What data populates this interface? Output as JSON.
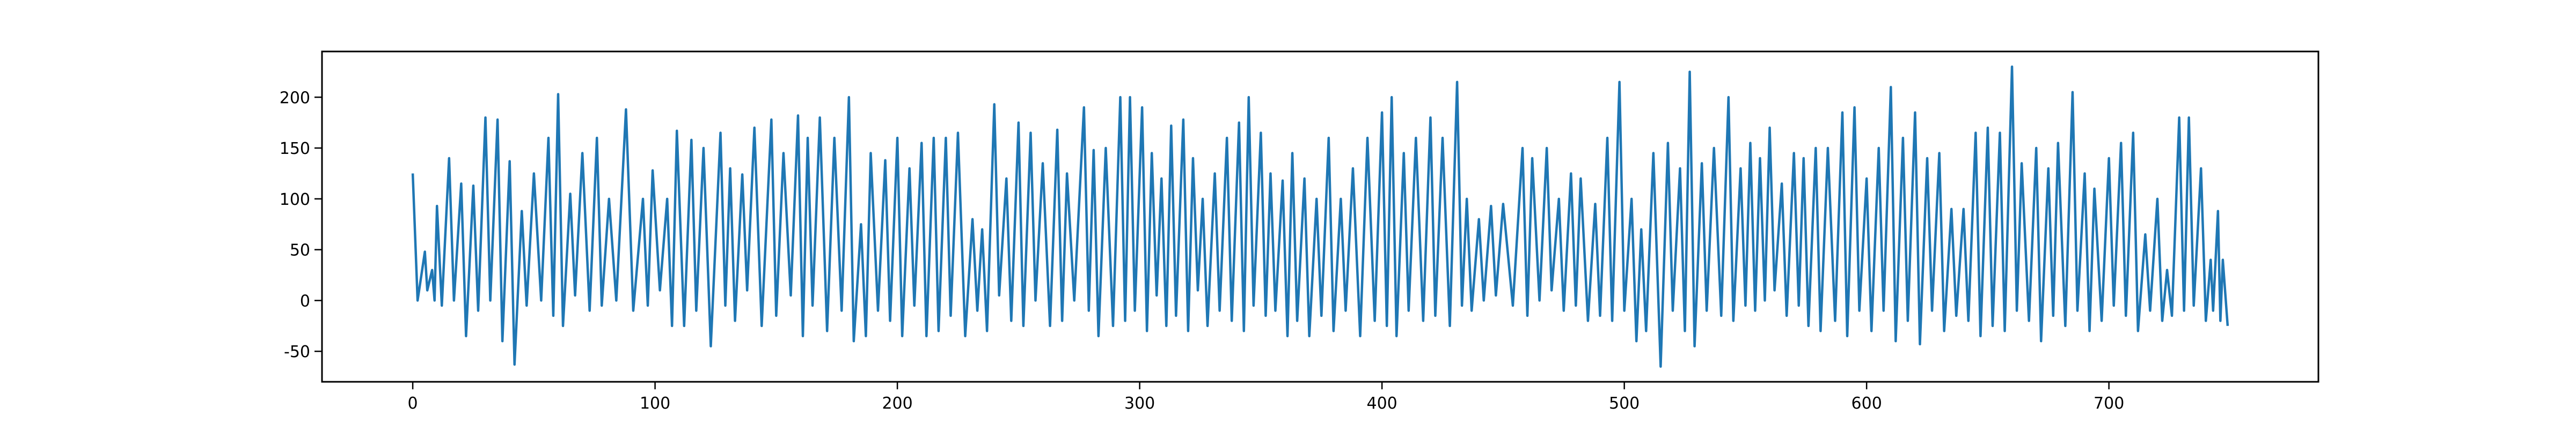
{
  "chart_data": {
    "type": "line",
    "x": [
      0,
      2,
      5,
      6,
      8,
      9,
      10,
      12,
      15,
      17,
      20,
      22,
      25,
      27,
      30,
      32,
      35,
      37,
      40,
      42,
      45,
      47,
      50,
      53,
      56,
      58,
      60,
      62,
      65,
      67,
      70,
      73,
      76,
      78,
      81,
      84,
      88,
      91,
      95,
      97,
      99,
      102,
      105,
      107,
      109,
      112,
      115,
      117,
      120,
      123,
      127,
      129,
      131,
      133,
      136,
      138,
      141,
      144,
      148,
      150,
      153,
      156,
      159,
      161,
      163,
      165,
      168,
      171,
      174,
      177,
      180,
      182,
      185,
      187,
      189,
      192,
      195,
      197,
      200,
      202,
      205,
      207,
      210,
      212,
      215,
      217,
      220,
      222,
      225,
      228,
      231,
      233,
      235,
      237,
      240,
      242,
      245,
      247,
      250,
      252,
      255,
      257,
      260,
      263,
      266,
      268,
      270,
      273,
      277,
      279,
      281,
      283,
      286,
      289,
      292,
      294,
      296,
      298,
      301,
      303,
      305,
      307,
      309,
      311,
      313,
      315,
      318,
      320,
      322,
      324,
      326,
      328,
      331,
      333,
      336,
      338,
      341,
      343,
      345,
      347,
      350,
      352,
      354,
      356,
      359,
      361,
      363,
      365,
      368,
      370,
      373,
      375,
      378,
      380,
      383,
      385,
      388,
      391,
      394,
      397,
      400,
      402,
      404,
      406,
      409,
      411,
      414,
      417,
      420,
      422,
      425,
      428,
      431,
      433,
      435,
      437,
      440,
      442,
      445,
      447,
      450,
      454,
      458,
      460,
      462,
      465,
      468,
      470,
      473,
      475,
      478,
      480,
      482,
      485,
      488,
      490,
      493,
      495,
      498,
      500,
      503,
      505,
      507,
      509,
      512,
      515,
      518,
      520,
      523,
      525,
      527,
      529,
      532,
      534,
      537,
      540,
      543,
      545,
      548,
      550,
      552,
      554,
      556,
      558,
      560,
      562,
      565,
      567,
      570,
      572,
      574,
      576,
      579,
      581,
      584,
      587,
      590,
      592,
      595,
      597,
      600,
      602,
      605,
      607,
      610,
      612,
      615,
      617,
      620,
      622,
      625,
      627,
      630,
      632,
      635,
      637,
      640,
      642,
      645,
      647,
      650,
      652,
      655,
      657,
      660,
      662,
      664,
      667,
      670,
      672,
      675,
      677,
      679,
      682,
      685,
      687,
      690,
      692,
      694,
      697,
      700,
      702,
      705,
      707,
      710,
      712,
      715,
      717,
      720,
      722,
      724,
      726,
      729,
      731,
      733,
      735,
      738,
      740,
      742,
      743,
      745,
      746,
      747,
      749
    ],
    "series": [
      {
        "color": "#1f77b4",
        "values": [
          125,
          0,
          48,
          10,
          30,
          0,
          93,
          -5,
          140,
          0,
          115,
          -35,
          113,
          -10,
          180,
          0,
          178,
          -40,
          137,
          -63,
          88,
          -5,
          125,
          0,
          160,
          -15,
          203,
          -25,
          105,
          5,
          145,
          -10,
          160,
          -5,
          100,
          0,
          188,
          -10,
          100,
          -5,
          128,
          10,
          100,
          -25,
          167,
          -25,
          158,
          -10,
          150,
          -45,
          165,
          -5,
          130,
          -20,
          124,
          10,
          170,
          -25,
          178,
          -15,
          145,
          5,
          182,
          -35,
          160,
          -5,
          180,
          -30,
          160,
          -10,
          200,
          -40,
          75,
          -35,
          145,
          -10,
          138,
          -20,
          160,
          -35,
          130,
          -5,
          155,
          -35,
          160,
          -30,
          160,
          -15,
          165,
          -35,
          80,
          -10,
          70,
          -30,
          193,
          5,
          120,
          -20,
          175,
          -25,
          165,
          0,
          135,
          -25,
          168,
          -20,
          125,
          0,
          190,
          -10,
          148,
          -35,
          150,
          -25,
          200,
          -20,
          200,
          -10,
          190,
          -30,
          145,
          5,
          120,
          -25,
          172,
          -15,
          178,
          -30,
          140,
          10,
          100,
          -25,
          125,
          -10,
          160,
          -20,
          175,
          -30,
          200,
          -5,
          165,
          -15,
          125,
          -10,
          118,
          -35,
          145,
          -20,
          120,
          -35,
          100,
          -15,
          160,
          -30,
          100,
          -10,
          130,
          -35,
          160,
          -20,
          185,
          -25,
          200,
          -35,
          145,
          -10,
          160,
          -20,
          180,
          -15,
          160,
          -25,
          215,
          -5,
          100,
          -10,
          80,
          0,
          93,
          5,
          95,
          -5,
          150,
          -15,
          140,
          0,
          150,
          10,
          100,
          -10,
          125,
          -5,
          120,
          -20,
          95,
          -15,
          160,
          -20,
          215,
          -10,
          100,
          -40,
          70,
          -30,
          145,
          -65,
          155,
          -10,
          130,
          -30,
          225,
          -45,
          135,
          -10,
          150,
          -15,
          200,
          -20,
          130,
          -5,
          155,
          -10,
          140,
          0,
          170,
          10,
          115,
          -15,
          145,
          -5,
          140,
          -25,
          150,
          -30,
          150,
          -20,
          185,
          -35,
          190,
          -10,
          120,
          -30,
          150,
          -10,
          210,
          -40,
          160,
          -20,
          185,
          -43,
          140,
          -10,
          145,
          -30,
          90,
          -15,
          90,
          -20,
          165,
          -35,
          170,
          -25,
          165,
          -30,
          230,
          -10,
          135,
          -20,
          150,
          -40,
          130,
          -15,
          155,
          -25,
          205,
          -10,
          125,
          -30,
          110,
          -20,
          140,
          -5,
          155,
          -15,
          165,
          -30,
          65,
          -10,
          100,
          -20,
          30,
          -15,
          180,
          -10,
          180,
          -5,
          130,
          -20,
          40,
          -10,
          88,
          -20,
          40,
          -25
        ]
      }
    ],
    "xlim": [
      -37.45,
      786.45
    ],
    "xticks": [
      0,
      100,
      200,
      300,
      400,
      500,
      600,
      700
    ],
    "ylim": [
      -80,
      245
    ],
    "yticks": [
      -50,
      0,
      50,
      100,
      150,
      200
    ]
  }
}
